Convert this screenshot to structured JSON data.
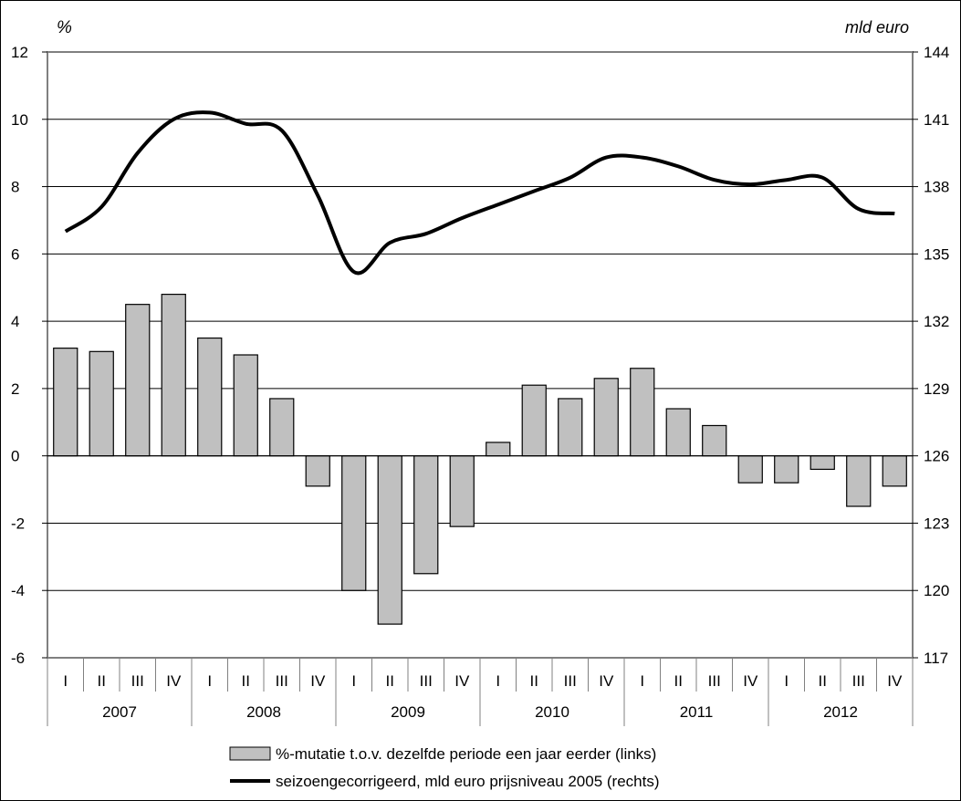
{
  "units": {
    "left": "%",
    "right": "mld euro"
  },
  "legend": {
    "bars_label": "%-mutatie t.o.v. dezelfde periode een jaar eerder (links)",
    "line_label": "seizoengecorrigeerd, mld euro prijsniveau 2005 (rechts)"
  },
  "colors": {
    "bar_fill": "#c0c0c0",
    "line": "#000000",
    "grid": "#000000"
  },
  "chart_data": {
    "type": "bar",
    "title": "",
    "xlabel": "",
    "ylabel": "%",
    "y2label": "mld euro",
    "categories": [
      "I",
      "II",
      "III",
      "IV",
      "I",
      "II",
      "III",
      "IV",
      "I",
      "II",
      "III",
      "IV",
      "I",
      "II",
      "III",
      "IV",
      "I",
      "II",
      "III",
      "IV",
      "I",
      "II",
      "III",
      "IV"
    ],
    "years": [
      "2007",
      "2008",
      "2009",
      "2010",
      "2011",
      "2012"
    ],
    "ylim": [
      -6,
      12
    ],
    "y_ticks": [
      12,
      10,
      8,
      6,
      4,
      2,
      0,
      -2,
      -4,
      -6
    ],
    "y2lim": [
      117,
      144
    ],
    "y2_ticks": [
      144,
      141,
      138,
      135,
      132,
      129,
      126,
      123,
      120,
      117
    ],
    "grid": true,
    "legend_position": "bottom",
    "series": [
      {
        "name": "%-mutatie t.o.v. dezelfde periode een jaar eerder (links)",
        "type": "bar",
        "axis": "left",
        "values": [
          3.2,
          3.1,
          4.5,
          4.8,
          3.5,
          3.0,
          1.7,
          -0.9,
          -4.0,
          -5.0,
          -3.5,
          -2.1,
          0.4,
          2.1,
          1.7,
          2.3,
          2.6,
          1.4,
          0.9,
          -0.8,
          -0.8,
          -0.4,
          -1.5,
          -0.9
        ]
      },
      {
        "name": "seizoengecorrigeerd, mld euro prijsniveau 2005 (rechts)",
        "type": "line",
        "axis": "right",
        "values": [
          136.0,
          137.1,
          139.5,
          141.0,
          141.3,
          140.8,
          140.5,
          137.6,
          134.2,
          135.5,
          135.9,
          136.6,
          137.2,
          137.8,
          138.4,
          139.3,
          139.3,
          138.9,
          138.3,
          138.1,
          138.3,
          138.4,
          137.0,
          136.8
        ]
      }
    ]
  }
}
